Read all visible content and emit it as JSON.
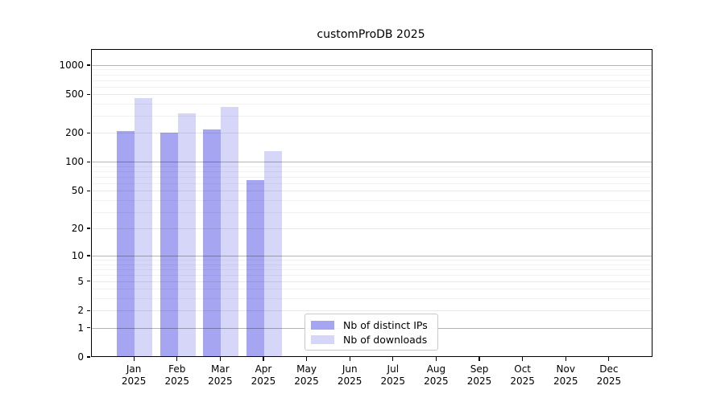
{
  "title": "customProDB 2025",
  "chart_data": {
    "type": "bar",
    "title": "customProDB 2025",
    "categories": [
      "Jan",
      "Feb",
      "Mar",
      "Apr",
      "May",
      "Jun",
      "Jul",
      "Aug",
      "Sep",
      "Oct",
      "Nov",
      "Dec"
    ],
    "year": "2025",
    "series": [
      {
        "name": "Nb of distinct IPs",
        "color": "#8f8fee",
        "values": [
          205,
          198,
          213,
          64,
          0,
          0,
          0,
          0,
          0,
          0,
          0,
          0
        ]
      },
      {
        "name": "Nb of downloads",
        "color": "#ccccf6",
        "values": [
          450,
          314,
          364,
          126,
          0,
          0,
          0,
          0,
          0,
          0,
          0,
          0
        ]
      }
    ],
    "yscale": "log1p",
    "yticks": [
      0,
      1,
      2,
      5,
      10,
      20,
      50,
      100,
      200,
      500,
      1000
    ],
    "ylim": [
      0,
      1500
    ],
    "grid": true,
    "legend_position": "lower center"
  },
  "colors": {
    "bar_distinct_ips": "#8f8fee",
    "bar_downloads": "#ccccf6",
    "grid_major": "#b5b5b5",
    "grid_minor": "#eeeeee",
    "axis": "#000000",
    "background": "#ffffff"
  }
}
